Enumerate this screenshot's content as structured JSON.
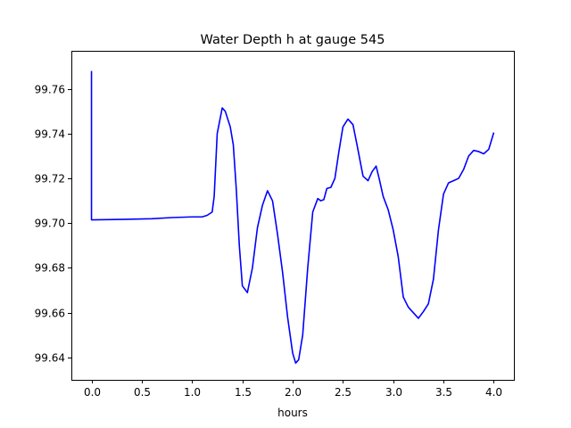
{
  "chart_data": {
    "type": "line",
    "title": "Water Depth h at gauge 545",
    "xlabel": "hours",
    "ylabel": "",
    "xlim": [
      -0.2,
      4.2
    ],
    "ylim": [
      99.63,
      99.777
    ],
    "x_ticks": [
      0.0,
      0.5,
      1.0,
      1.5,
      2.0,
      2.5,
      3.0,
      3.5,
      4.0
    ],
    "x_tick_labels": [
      "0.0",
      "0.5",
      "1.0",
      "1.5",
      "2.0",
      "2.5",
      "3.0",
      "3.5",
      "4.0"
    ],
    "y_ticks": [
      99.64,
      99.66,
      99.68,
      99.7,
      99.72,
      99.74,
      99.76
    ],
    "y_tick_labels": [
      "99.64",
      "99.66",
      "99.68",
      "99.70",
      "99.72",
      "99.74",
      "99.76"
    ],
    "grid": false,
    "line_color": "#0000ff",
    "series": [
      {
        "x": [
          0.0,
          0.0,
          0.01,
          0.3,
          0.6,
          0.8,
          1.0,
          1.1,
          1.15,
          1.2,
          1.22,
          1.25,
          1.3,
          1.33,
          1.38,
          1.41,
          1.44,
          1.47,
          1.5,
          1.55,
          1.6,
          1.65,
          1.7,
          1.75,
          1.8,
          1.85,
          1.9,
          1.95,
          2.0,
          2.03,
          2.06,
          2.1,
          2.15,
          2.2,
          2.25,
          2.28,
          2.31,
          2.34,
          2.38,
          2.42,
          2.46,
          2.5,
          2.55,
          2.6,
          2.64,
          2.7,
          2.75,
          2.79,
          2.83,
          2.86,
          2.9,
          2.95,
          3.0,
          3.05,
          3.1,
          3.15,
          3.2,
          3.25,
          3.3,
          3.35,
          3.4,
          3.45,
          3.5,
          3.55,
          3.6,
          3.65,
          3.7,
          3.75,
          3.8,
          3.85,
          3.9,
          3.95,
          4.0
        ],
        "y": [
          99.768,
          99.7015,
          99.7015,
          99.7017,
          99.702,
          99.7025,
          99.7028,
          99.7028,
          99.7035,
          99.705,
          99.712,
          99.74,
          99.7515,
          99.75,
          99.743,
          99.735,
          99.715,
          99.69,
          99.672,
          99.669,
          99.68,
          99.698,
          99.708,
          99.7145,
          99.71,
          99.695,
          99.678,
          99.658,
          99.642,
          99.6375,
          99.639,
          99.65,
          99.68,
          99.705,
          99.711,
          99.71,
          99.7105,
          99.7155,
          99.716,
          99.72,
          99.732,
          99.743,
          99.7465,
          99.744,
          99.735,
          99.721,
          99.719,
          99.723,
          99.7255,
          99.72,
          99.712,
          99.706,
          99.697,
          99.685,
          99.667,
          99.6625,
          99.66,
          99.6575,
          99.6605,
          99.664,
          99.675,
          99.697,
          99.713,
          99.718,
          99.719,
          99.72,
          99.724,
          99.73,
          99.7325,
          99.732,
          99.731,
          99.733,
          99.7405
        ]
      }
    ]
  }
}
